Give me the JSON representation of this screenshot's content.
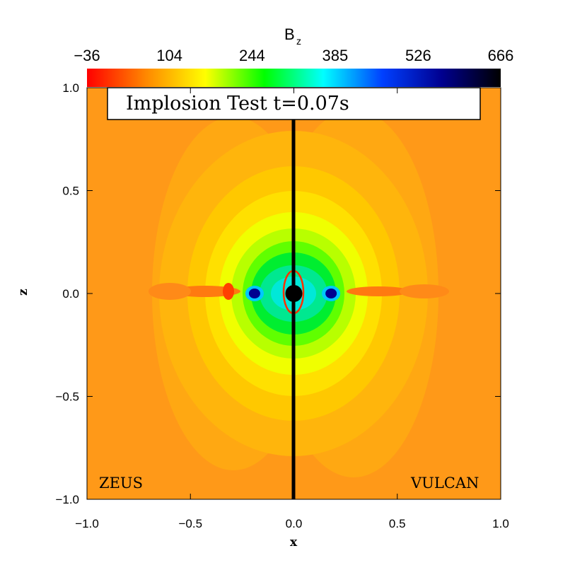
{
  "chart_data": {
    "type": "heatmap",
    "title": "Implosion Test t=0.07s",
    "xlabel": "x",
    "ylabel": "z",
    "xlim": [
      -1.0,
      1.0
    ],
    "ylim": [
      -1.0,
      1.0
    ],
    "x_ticks": [
      -1.0,
      -0.5,
      0.0,
      0.5,
      1.0
    ],
    "y_ticks": [
      -1.0,
      -0.5,
      0.0,
      0.5,
      1.0
    ],
    "x_tick_labels": [
      "−1.0",
      "−0.5",
      "0.0",
      "0.5",
      "1.0"
    ],
    "y_tick_labels": [
      "−1.0",
      "−0.5",
      "0.0",
      "0.5",
      "1.0"
    ],
    "colorbar": {
      "quantity": "B",
      "quantity_subscript": "z",
      "range": [
        -36,
        666
      ],
      "tick_values": [
        -36,
        104,
        244,
        385,
        526,
        666
      ],
      "tick_labels": [
        "−36",
        "104",
        "244",
        "385",
        "526",
        "666"
      ],
      "colormap": [
        "#ff0000",
        "#ff8800",
        "#ffff00",
        "#00ff00",
        "#00ffff",
        "#0040ff",
        "#000090",
        "#000000"
      ]
    },
    "panels": [
      {
        "label": "ZEUS",
        "x_range": [
          -1.0,
          0.0
        ]
      },
      {
        "label": "VULCAN",
        "x_range": [
          0.0,
          1.0
        ]
      }
    ],
    "features": [
      {
        "name": "central core",
        "x": 0.0,
        "z": 0.0,
        "value": 666
      },
      {
        "name": "ZEUS blue lobe",
        "x": -0.19,
        "z": 0.0,
        "value": 526
      },
      {
        "name": "VULCAN blue lobe",
        "x": 0.18,
        "z": 0.0,
        "value": 526
      }
    ],
    "background_value": 30
  }
}
